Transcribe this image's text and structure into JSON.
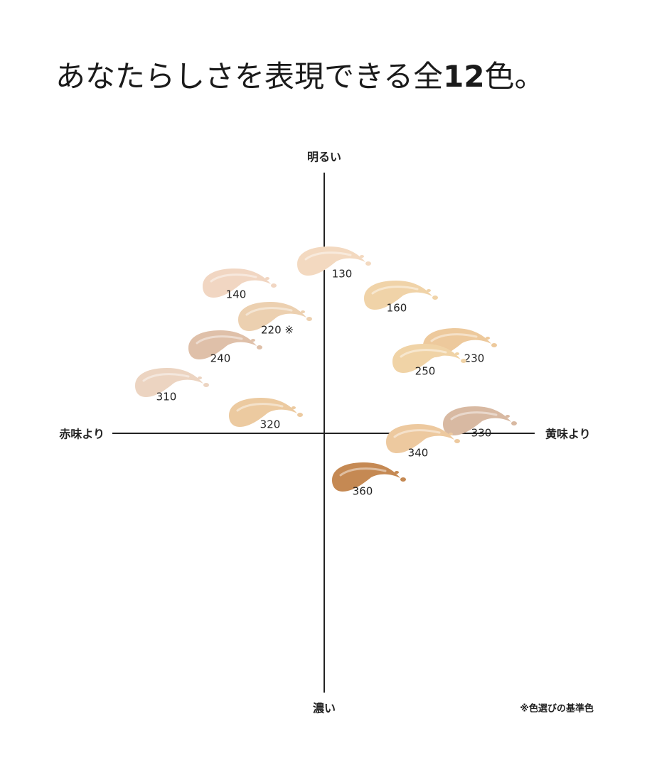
{
  "title": {
    "before": "あなたらしさを表現できる全",
    "number": "12",
    "after": "色。"
  },
  "axes": {
    "top": "明るい",
    "bottom": "濃い",
    "left": "赤味より",
    "right": "黄味より"
  },
  "shades": [
    {
      "label": "130",
      "color": "#f3d9c0"
    },
    {
      "label": "140",
      "color": "#f1d6c2"
    },
    {
      "label": "160",
      "color": "#f0d3a8"
    },
    {
      "label": "220 ※",
      "color": "#ecd0b0"
    },
    {
      "label": "240",
      "color": "#dfc0a9"
    },
    {
      "label": "230",
      "color": "#edc99c"
    },
    {
      "label": "250",
      "color": "#f0d3a6"
    },
    {
      "label": "310",
      "color": "#ecd4c1"
    },
    {
      "label": "320",
      "color": "#eccaa0"
    },
    {
      "label": "330",
      "color": "#d8b9a2"
    },
    {
      "label": "340",
      "color": "#edc99f"
    },
    {
      "label": "360",
      "color": "#c58953"
    }
  ],
  "note": "※色選びの基準色"
}
